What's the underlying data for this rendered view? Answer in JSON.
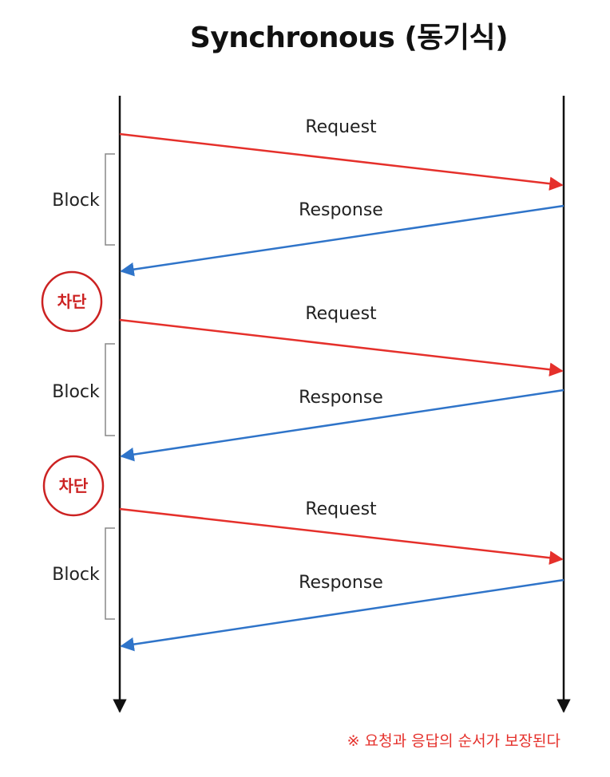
{
  "title": "Synchronous (동기식)",
  "colors": {
    "request": "#e5302b",
    "response": "#2f74c9",
    "lifeline": "#111111",
    "bracket": "#888888",
    "blocked": "#cc2222"
  },
  "exchanges": [
    {
      "request_label": "Request",
      "response_label": "Response",
      "block_label": "Block",
      "blocked_label": "차단"
    },
    {
      "request_label": "Request",
      "response_label": "Response",
      "block_label": "Block",
      "blocked_label": "차단"
    },
    {
      "request_label": "Request",
      "response_label": "Response",
      "block_label": "Block"
    }
  ],
  "footnote": "※ 요청과 응답의 순서가 보장된다"
}
